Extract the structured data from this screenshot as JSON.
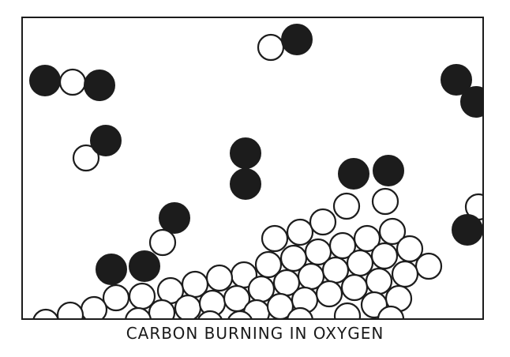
{
  "caption": "CARBON BURNING IN OXYGEN",
  "colors": {
    "carbon": "#1c1c1c",
    "oxygen": "#ffffff",
    "stroke": "#1c1c1c"
  },
  "atom_types": [
    "carbon-atom",
    "oxygen-atom"
  ]
}
